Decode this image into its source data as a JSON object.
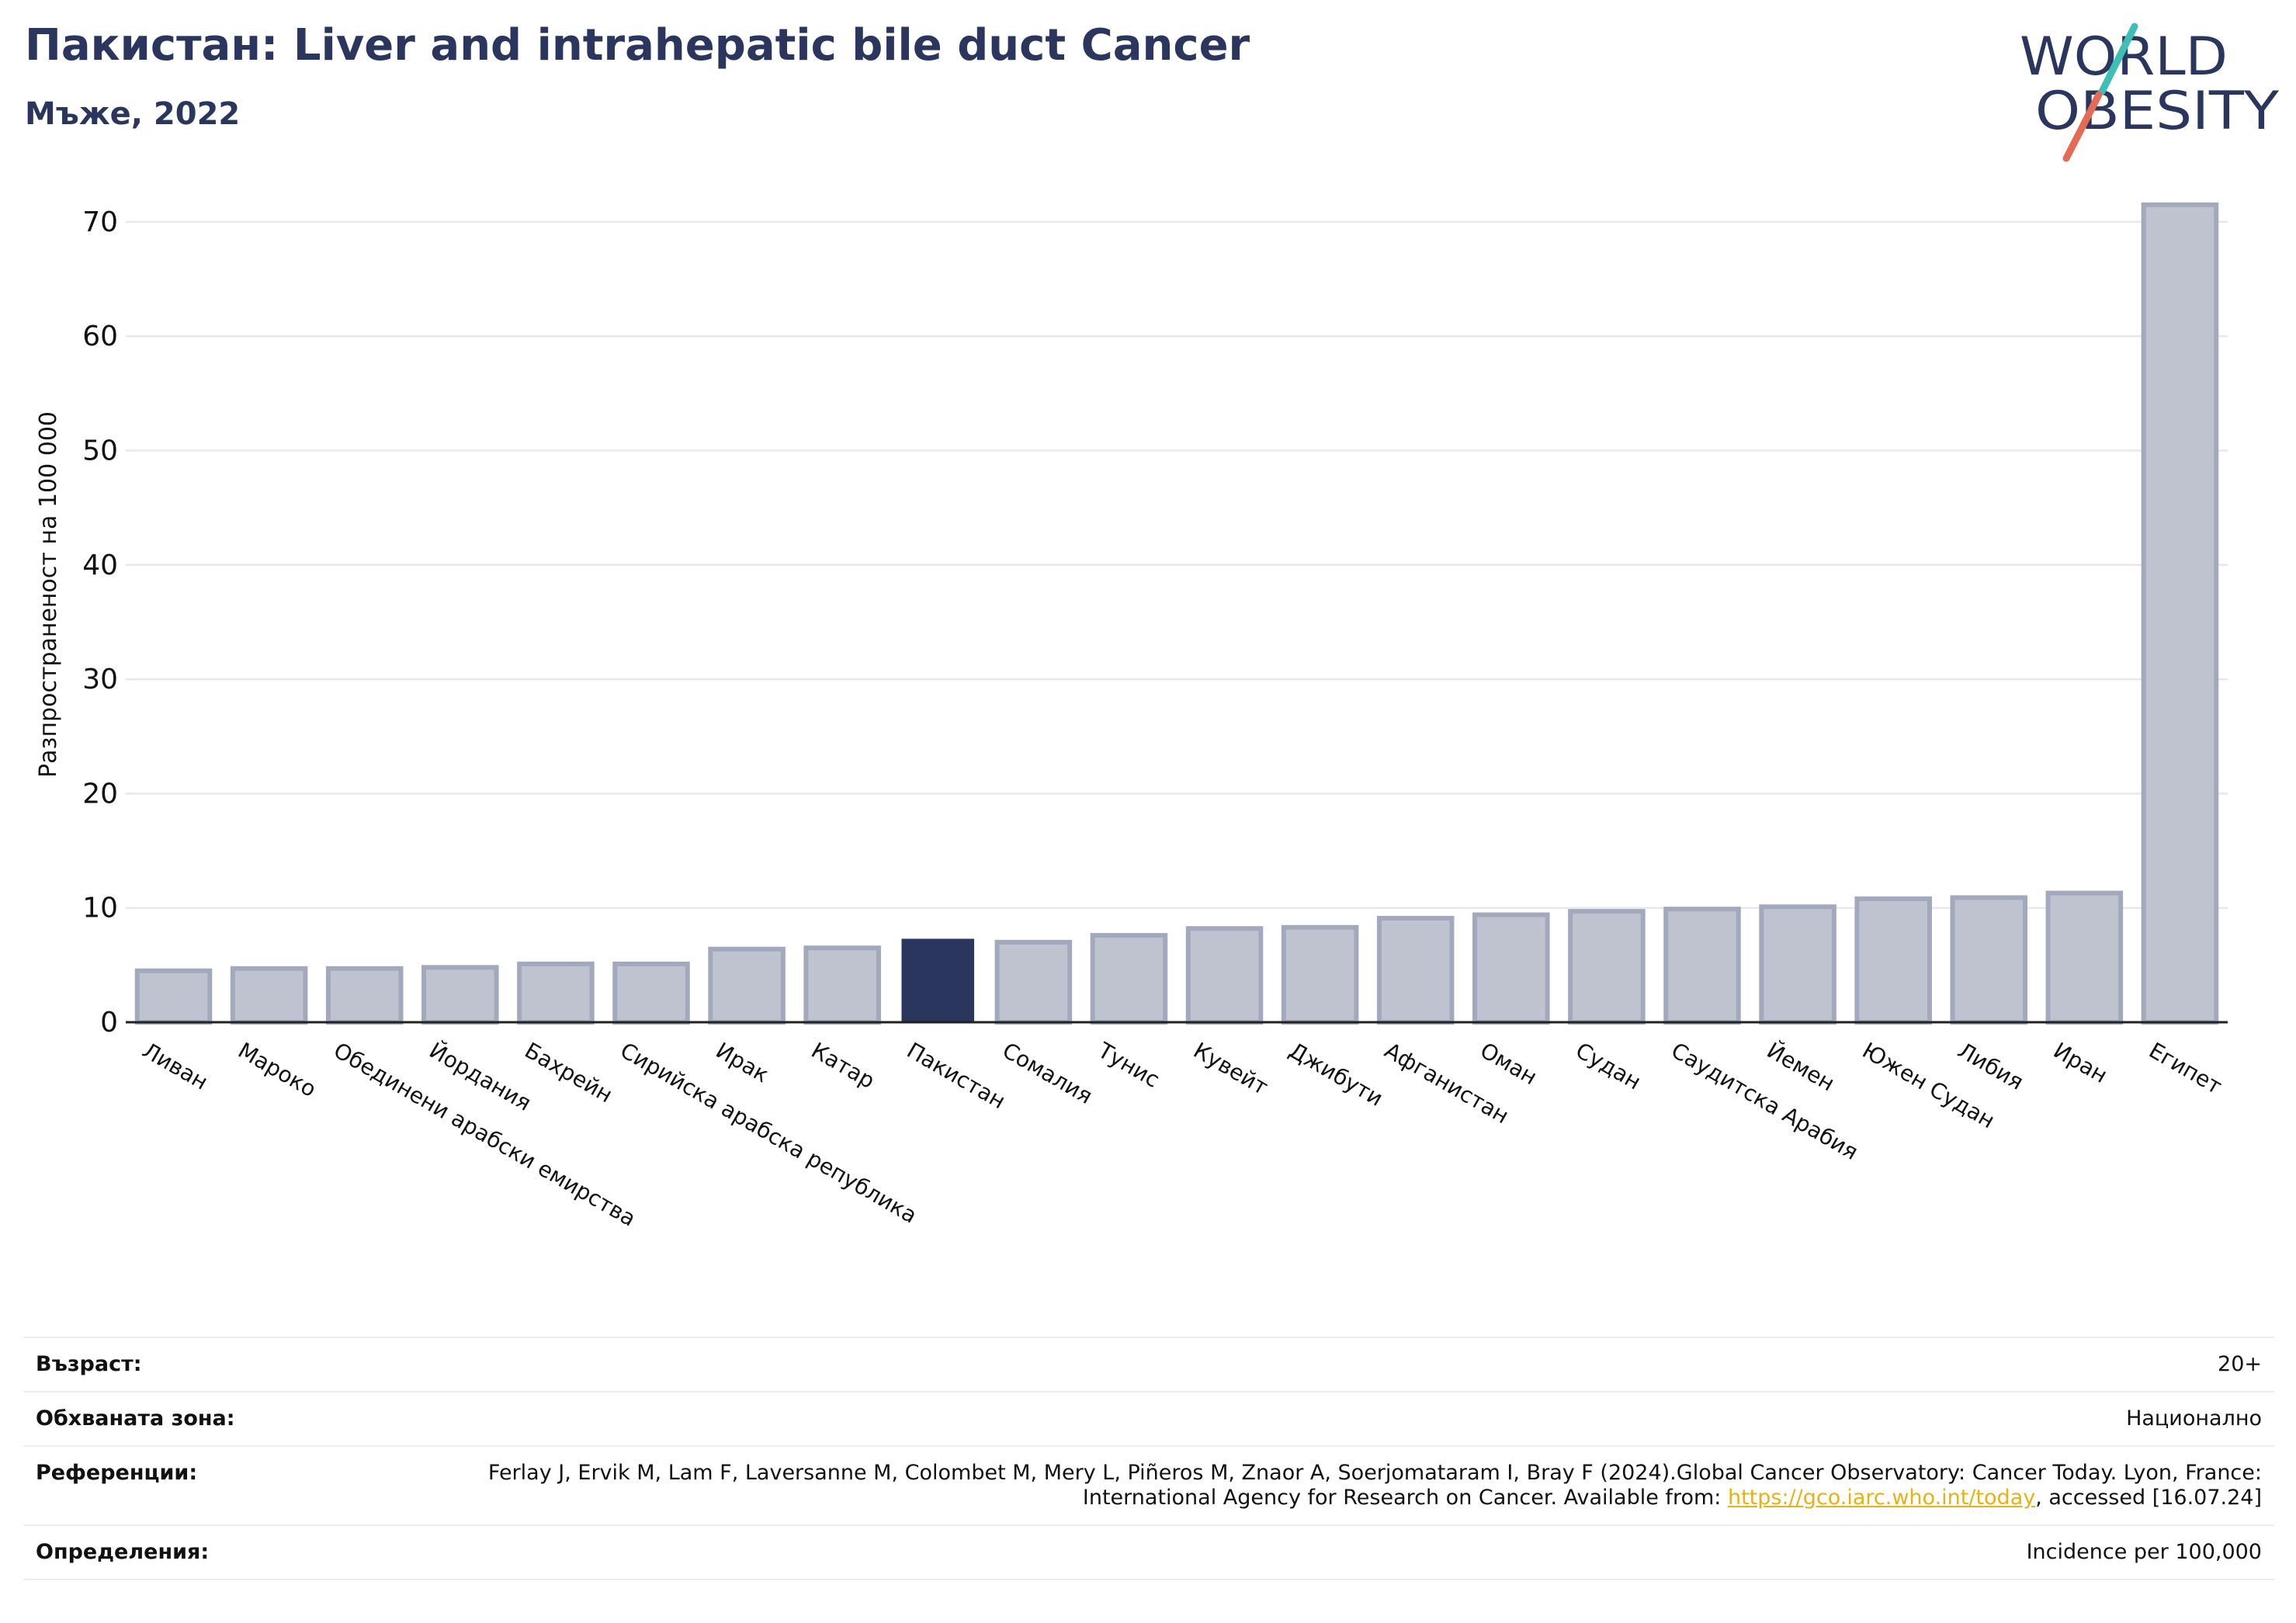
{
  "title": "Пакистан: Liver and intrahepatic bile duct Cancer",
  "subtitle": "Мъже, 2022",
  "logo": {
    "line1": "WORLD",
    "line2": "OBESITY"
  },
  "colors": {
    "bar": "#bfc3d0",
    "bar_border": "#a3a9bc",
    "highlight": "#2b365e",
    "grid": "#e6e8ee",
    "axis": "#222222",
    "link": "#e6b214",
    "logo_text": "#2b365e",
    "logo_teal": "#3dbfb8",
    "logo_coral": "#e56b55"
  },
  "chart_data": {
    "type": "bar",
    "ylabel": "Разпространеност  на 100 000",
    "ylim": [
      0,
      75
    ],
    "yticks": [
      0,
      10,
      20,
      30,
      40,
      50,
      60,
      70
    ],
    "grid": true,
    "highlight": "Пакистан",
    "categories": [
      "Ливан",
      "Мароко",
      "Обединени арабски емирства",
      "Йордания",
      "Бахрейн",
      "Сирийска арабска република",
      "Ирак",
      "Катар",
      "Пакистан",
      "Сомалия",
      "Тунис",
      "Кувейт",
      "Джибути",
      "Афганистан",
      "Оман",
      "Судан",
      "Саудитска Арабия",
      "Йемен",
      "Южен Судан",
      "Либия",
      "Иран",
      "Египет"
    ],
    "values": [
      4.5,
      4.7,
      4.7,
      4.8,
      5.1,
      5.1,
      6.4,
      6.5,
      7.3,
      7.0,
      7.6,
      8.2,
      8.3,
      9.1,
      9.4,
      9.7,
      9.9,
      10.1,
      10.8,
      10.9,
      11.3,
      71.5
    ]
  },
  "info": {
    "age_label": "Възраст:",
    "age_value": "20+",
    "area_label": "Обхваната зона:",
    "area_value": "Национално",
    "ref_label": "Референции:",
    "ref_value_pre": "Ferlay J, Ervik M, Lam F, Laversanne M, Colombet M, Mery L, Piñeros M, Znaor A, Soerjomataram I, Bray F (2024).Global Cancer Observatory: Cancer Today. Lyon, France: International Agency for Research on Cancer. Available from: ",
    "ref_link": "https://gco.iarc.who.int/today",
    "ref_value_post": ", accessed [16.07.24]",
    "def_label": "Определения:",
    "def_value": "Incidence per 100,000"
  }
}
